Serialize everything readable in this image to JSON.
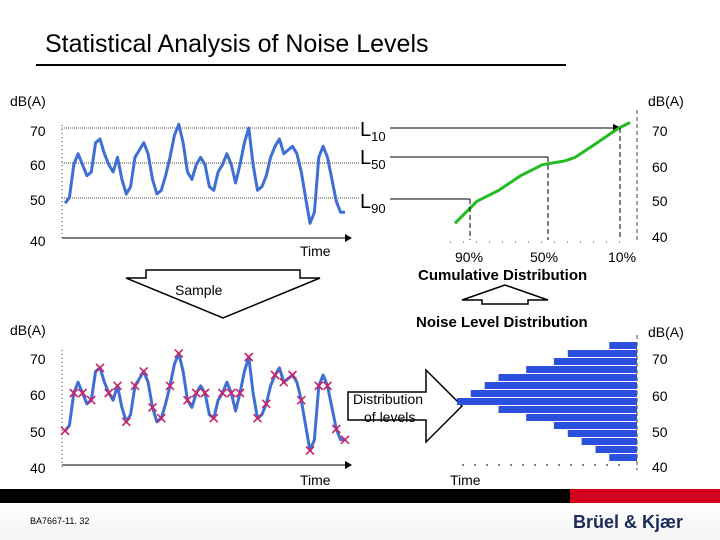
{
  "title": "Statistical Analysis of Noise Levels",
  "units": "d(A)",
  "unit_label": "d B(A)",
  "levels": [
    "70",
    "60",
    "50",
    "40"
  ],
  "time_label": "Time",
  "sample_label": "Sample",
  "lvals": [
    {
      "main": "L",
      "sub": "10"
    },
    {
      "main": "L",
      "sub": "50"
    },
    {
      "main": "L",
      "sub": "90"
    }
  ],
  "cumulative": {
    "title": "Cumulative Distribution",
    "percent_labels": [
      "90%",
      "50%",
      "10%"
    ]
  },
  "noise_level_distribution_title": "Noise Level Distribution",
  "distribution_arrow_text": [
    "Distribution",
    "of levels"
  ],
  "footer": {
    "doc_code": "BA7667-11. 32",
    "logo": "Brüel & Kjær"
  },
  "colors": {
    "signal": "#3f6fd4",
    "cumulative": "#22bb22",
    "distribution": "#2a50dd",
    "sample_mark": "#cc2266",
    "footer_red": "#d2001e"
  },
  "chart_data": [
    {
      "type": "line",
      "title": "",
      "ylabel": "dB(A)",
      "xlabel": "Time",
      "ylim": [
        40,
        70
      ],
      "y": [
        49.5,
        51,
        60,
        63,
        60,
        57,
        58,
        66,
        67,
        63,
        60,
        58,
        62,
        56,
        52,
        54,
        62,
        64,
        66,
        63,
        56,
        52,
        53,
        57,
        62,
        68,
        71,
        66,
        58,
        56,
        60,
        62,
        60,
        54,
        53,
        58,
        60,
        63,
        60,
        55,
        60,
        66,
        70,
        60,
        53,
        54,
        57,
        62,
        65,
        67,
        63,
        64,
        65,
        63,
        58,
        51,
        44,
        47,
        62,
        65,
        62,
        56,
        50,
        47,
        47
      ]
    },
    {
      "type": "line",
      "title": "Cumulative Distribution",
      "ylabel": "dB(A)",
      "x_ticks": [
        "90%",
        "50%",
        "10%"
      ],
      "ylim": [
        40,
        70
      ],
      "y": [
        44,
        47,
        50,
        51.5,
        53,
        55,
        57,
        58.5,
        60,
        60.5,
        61,
        62,
        64,
        66,
        68,
        70,
        71.5
      ]
    },
    {
      "type": "bar",
      "title": "Noise Level Distribution",
      "ylabel": "dB(A)",
      "orientation": "horizontal",
      "ylim": [
        40,
        70
      ],
      "values": [
        2,
        5,
        6,
        8,
        10,
        11,
        12,
        13,
        10,
        8,
        6,
        5,
        4,
        3,
        2
      ]
    }
  ]
}
